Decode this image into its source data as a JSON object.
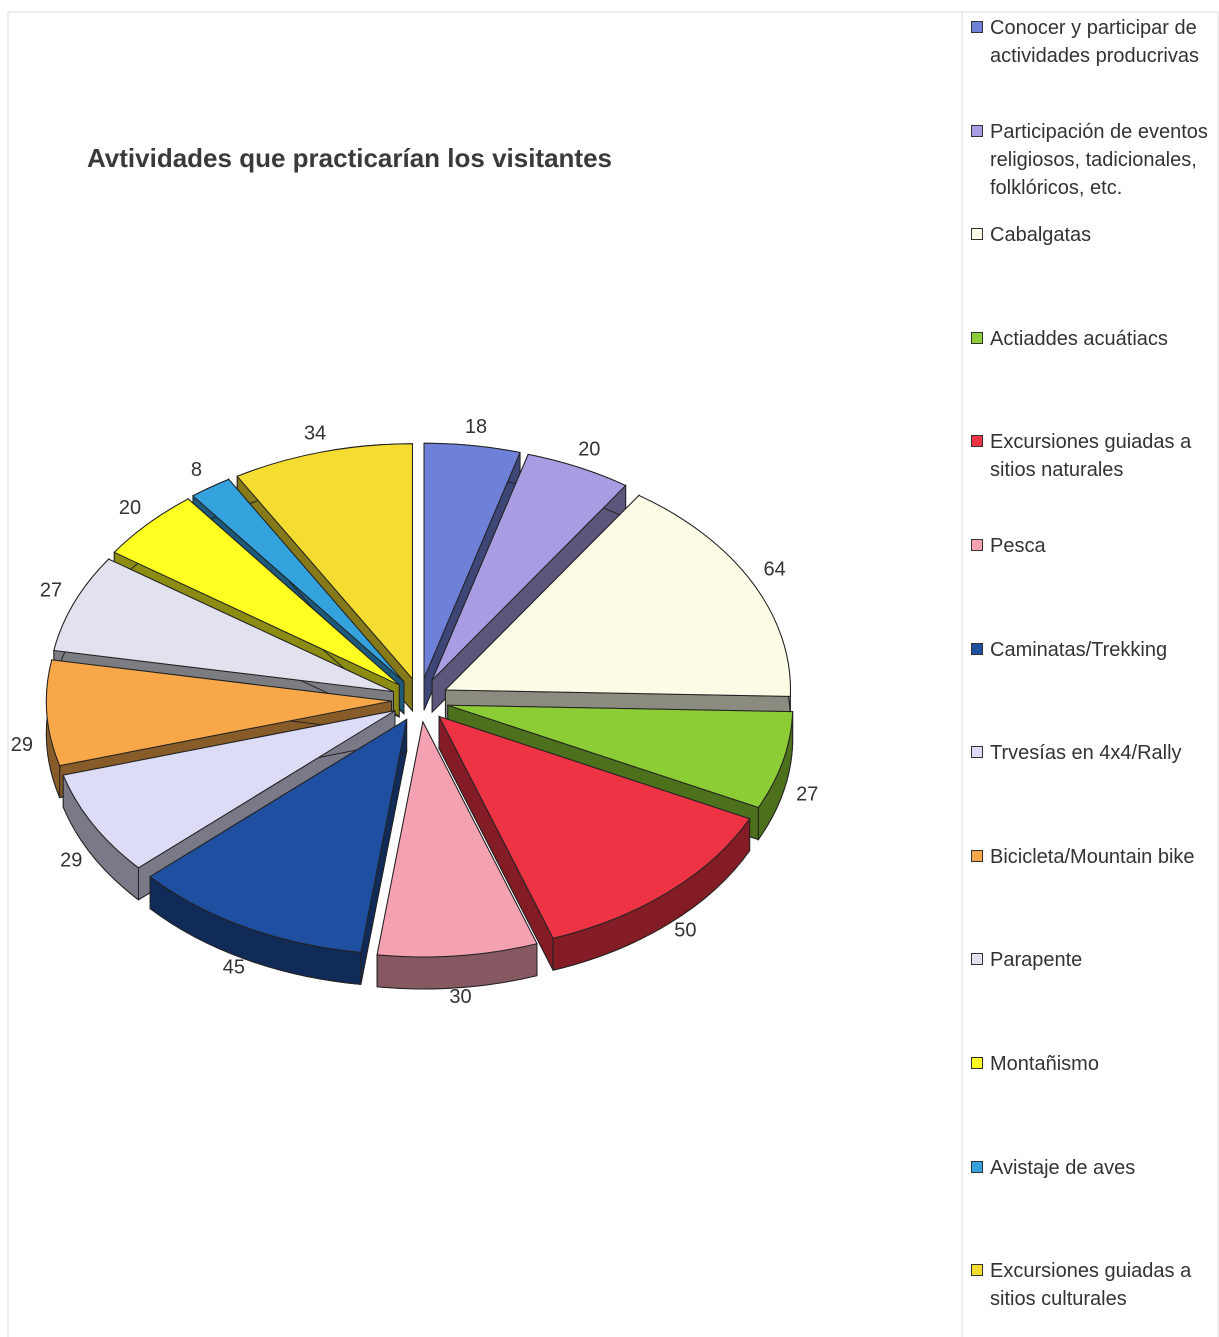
{
  "chart_data": {
    "type": "pie",
    "title": "Avtividades que practicarían los visitantes",
    "categories": [
      "Conocer y participar de actividades producrivas",
      "Participación de eventos religiosos, tadicionales, folklóricos, etc.",
      "Cabalgatas",
      "Actiaddes acuátiacs",
      "Excursiones guiadas a sitios naturales",
      "Pesca",
      "Caminatas/Trekking",
      "Trvesías en 4x4/Rally",
      "Bicicleta/Mountain bike",
      "Parapente",
      "Montañismo",
      "Avistaje de aves",
      "Excursiones guiadas a sitios culturales"
    ],
    "values": [
      18,
      20,
      64,
      27,
      50,
      30,
      45,
      29,
      29,
      27,
      20,
      8,
      34
    ],
    "colors": [
      "#6f80d8",
      "#a99ce2",
      "#fcfce6",
      "#8ccc34",
      "#ee3344",
      "#f4a2b2",
      "#1f4fa0",
      "#dcdcf6",
      "#f8a848",
      "#e2e2ee",
      "#ffff22",
      "#33a2dd",
      "#f4dc30"
    ]
  }
}
